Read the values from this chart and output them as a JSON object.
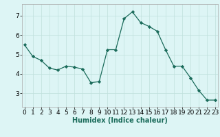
{
  "x": [
    0,
    1,
    2,
    3,
    4,
    5,
    6,
    7,
    8,
    9,
    10,
    11,
    12,
    13,
    14,
    15,
    16,
    17,
    18,
    19,
    20,
    21,
    22,
    23
  ],
  "y": [
    5.5,
    4.9,
    4.7,
    4.3,
    4.2,
    4.4,
    4.35,
    4.25,
    3.55,
    3.6,
    5.25,
    5.25,
    6.85,
    7.2,
    6.65,
    6.45,
    6.2,
    5.25,
    4.4,
    4.4,
    3.8,
    3.15,
    2.65,
    2.65
  ],
  "line_color": "#1a6b5a",
  "marker": "D",
  "marker_size": 2.2,
  "bg_color": "#ddf5f5",
  "grid_color": "#c0e0dc",
  "xlabel": "Humidex (Indice chaleur)",
  "xlabel_fontsize": 7,
  "yticks": [
    3,
    4,
    5,
    6,
    7
  ],
  "xticks": [
    0,
    1,
    2,
    3,
    4,
    5,
    6,
    7,
    8,
    9,
    10,
    11,
    12,
    13,
    14,
    15,
    16,
    17,
    18,
    19,
    20,
    21,
    22,
    23
  ],
  "ylim": [
    2.3,
    7.6
  ],
  "xlim": [
    -0.3,
    23.3
  ],
  "tick_fontsize": 6.5,
  "lw": 0.9
}
